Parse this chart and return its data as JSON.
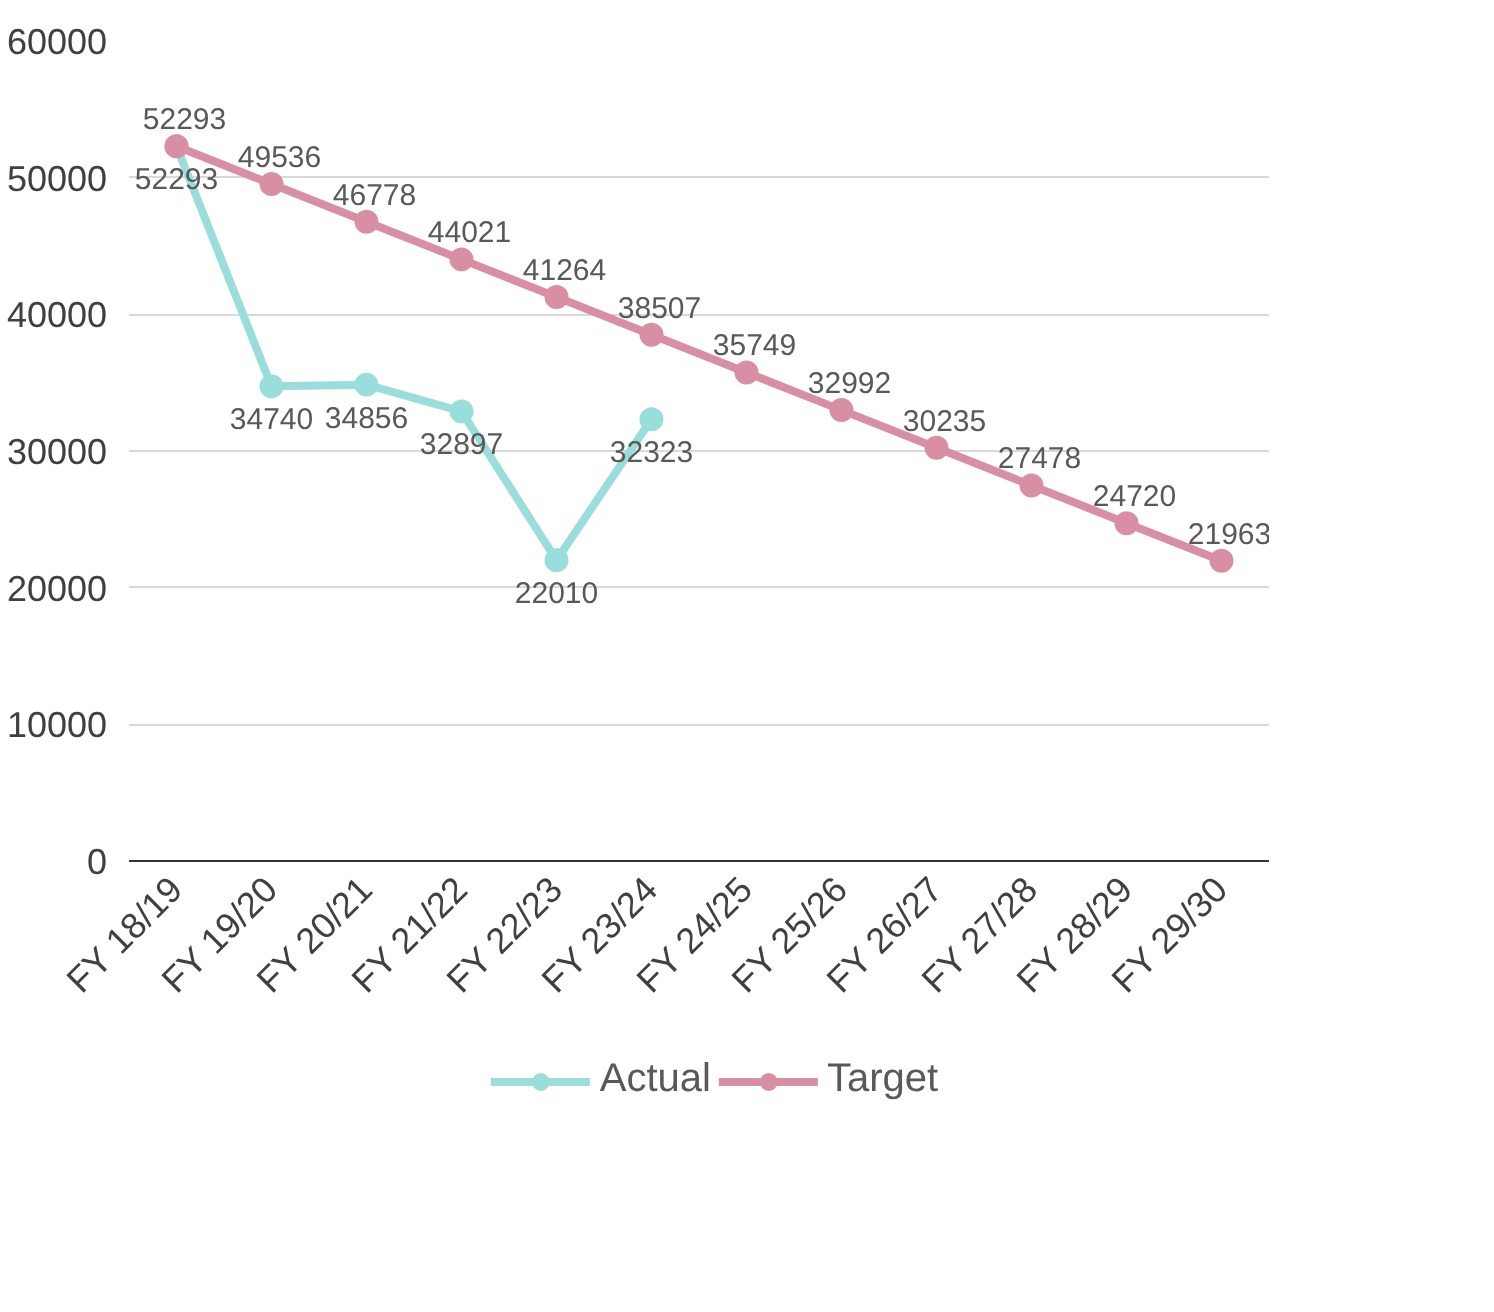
{
  "chart_data": {
    "type": "line",
    "categories": [
      "FY 18/19",
      "FY 19/20",
      "FY 20/21",
      "FY 21/22",
      "FY 22/23",
      "FY 23/24",
      "FY 24/25",
      "FY 25/26",
      "FY 26/27",
      "FY 27/28",
      "FY 28/29",
      "FY 29/30"
    ],
    "series": [
      {
        "name": "Actual",
        "color": "#99dedb",
        "values": [
          52293,
          34740,
          34856,
          32897,
          22010,
          32323,
          null,
          null,
          null,
          null,
          null,
          null
        ]
      },
      {
        "name": "Target",
        "color": "#d98fa3",
        "values": [
          52293,
          49536,
          46778,
          44021,
          41264,
          38507,
          35749,
          32992,
          30235,
          27478,
          24720,
          21963
        ]
      }
    ],
    "ylim": [
      0,
      60000
    ],
    "yticks": [
      0,
      10000,
      20000,
      30000,
      40000,
      50000,
      60000
    ],
    "grid": "y",
    "legend": "bottom",
    "marker": "circle",
    "line_style": "solid",
    "data_labels": true
  }
}
